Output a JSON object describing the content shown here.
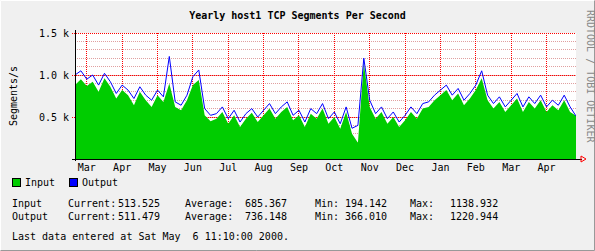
{
  "chart_data": {
    "type": "line",
    "title": "Yearly host1 TCP Segments Per Second",
    "y_label": "Segments/s",
    "side_text": "RRDTOOL / TOBI OETIKER",
    "categories": [
      null,
      null,
      "Mar",
      null,
      null,
      null,
      null,
      null,
      "Apr",
      null,
      null,
      null,
      null,
      null,
      "May",
      null,
      null,
      null,
      null,
      null,
      "Jun",
      null,
      null,
      null,
      null,
      null,
      "Jul",
      null,
      null,
      null,
      null,
      null,
      "Aug",
      null,
      null,
      null,
      null,
      null,
      "Sep",
      null,
      null,
      null,
      null,
      null,
      "Oct",
      null,
      null,
      null,
      null,
      null,
      "Nov",
      null,
      null,
      null,
      null,
      null,
      "Dec",
      null,
      null,
      null,
      null,
      null,
      "Jan",
      null,
      null,
      null,
      null,
      null,
      "Feb",
      null,
      null,
      null,
      null,
      null,
      "Mar",
      null,
      null,
      null,
      null,
      null,
      "Apr",
      null,
      null,
      null,
      null,
      null
    ],
    "series": [
      {
        "name": "Input",
        "type": "area",
        "color": "#00cc00",
        "values": [
          880,
          950,
          870,
          920,
          800,
          960,
          860,
          720,
          820,
          760,
          640,
          800,
          700,
          620,
          760,
          680,
          900,
          620,
          580,
          700,
          880,
          940,
          520,
          450,
          480,
          560,
          420,
          520,
          380,
          480,
          550,
          440,
          520,
          600,
          480,
          560,
          620,
          460,
          520,
          380,
          540,
          480,
          600,
          420,
          500,
          360,
          560,
          300,
          194.142,
          1138.932,
          620,
          480,
          560,
          420,
          500,
          380,
          460,
          560,
          480,
          600,
          620,
          700,
          760,
          820,
          700,
          780,
          640,
          720,
          820,
          960,
          700,
          600,
          680,
          560,
          640,
          720,
          560,
          680,
          600,
          700,
          560,
          640,
          580,
          700,
          560,
          513.525
        ]
      },
      {
        "name": "Output",
        "type": "line",
        "color": "#0000ff",
        "values": [
          1000,
          1050,
          950,
          1000,
          880,
          1020,
          920,
          780,
          880,
          820,
          720,
          860,
          760,
          700,
          820,
          740,
          1220.944,
          680,
          640,
          760,
          980,
          1060,
          600,
          520,
          540,
          620,
          480,
          580,
          440,
          540,
          600,
          500,
          580,
          660,
          540,
          620,
          680,
          520,
          580,
          440,
          600,
          540,
          660,
          480,
          560,
          420,
          620,
          366.01,
          400,
          1200,
          700,
          540,
          620,
          480,
          560,
          440,
          520,
          620,
          540,
          660,
          680,
          760,
          820,
          880,
          760,
          840,
          700,
          780,
          880,
          1050,
          760,
          660,
          740,
          620,
          700,
          780,
          620,
          740,
          660,
          760,
          620,
          700,
          640,
          760,
          620,
          511.479
        ]
      }
    ],
    "ylim": [
      0,
      1500
    ],
    "yticks": [
      {
        "value": 500,
        "label": "0.5 k"
      },
      {
        "value": 1000,
        "label": "1.0 k"
      },
      {
        "value": 1500,
        "label": "1.5 k"
      }
    ],
    "grid": true,
    "legend": "bottom",
    "summary": {
      "headers": [
        "Current:",
        "Average:",
        "Min:",
        "Max:"
      ],
      "rows": [
        {
          "name": "Input",
          "cells": [
            "513.525",
            "685.367",
            "194.142",
            "1138.932"
          ]
        },
        {
          "name": "Output",
          "cells": [
            "511.479",
            "736.148",
            "366.010",
            "1220.944"
          ]
        }
      ]
    },
    "footer": "Last data entered at Sat May  6 11:10:00 2000."
  }
}
